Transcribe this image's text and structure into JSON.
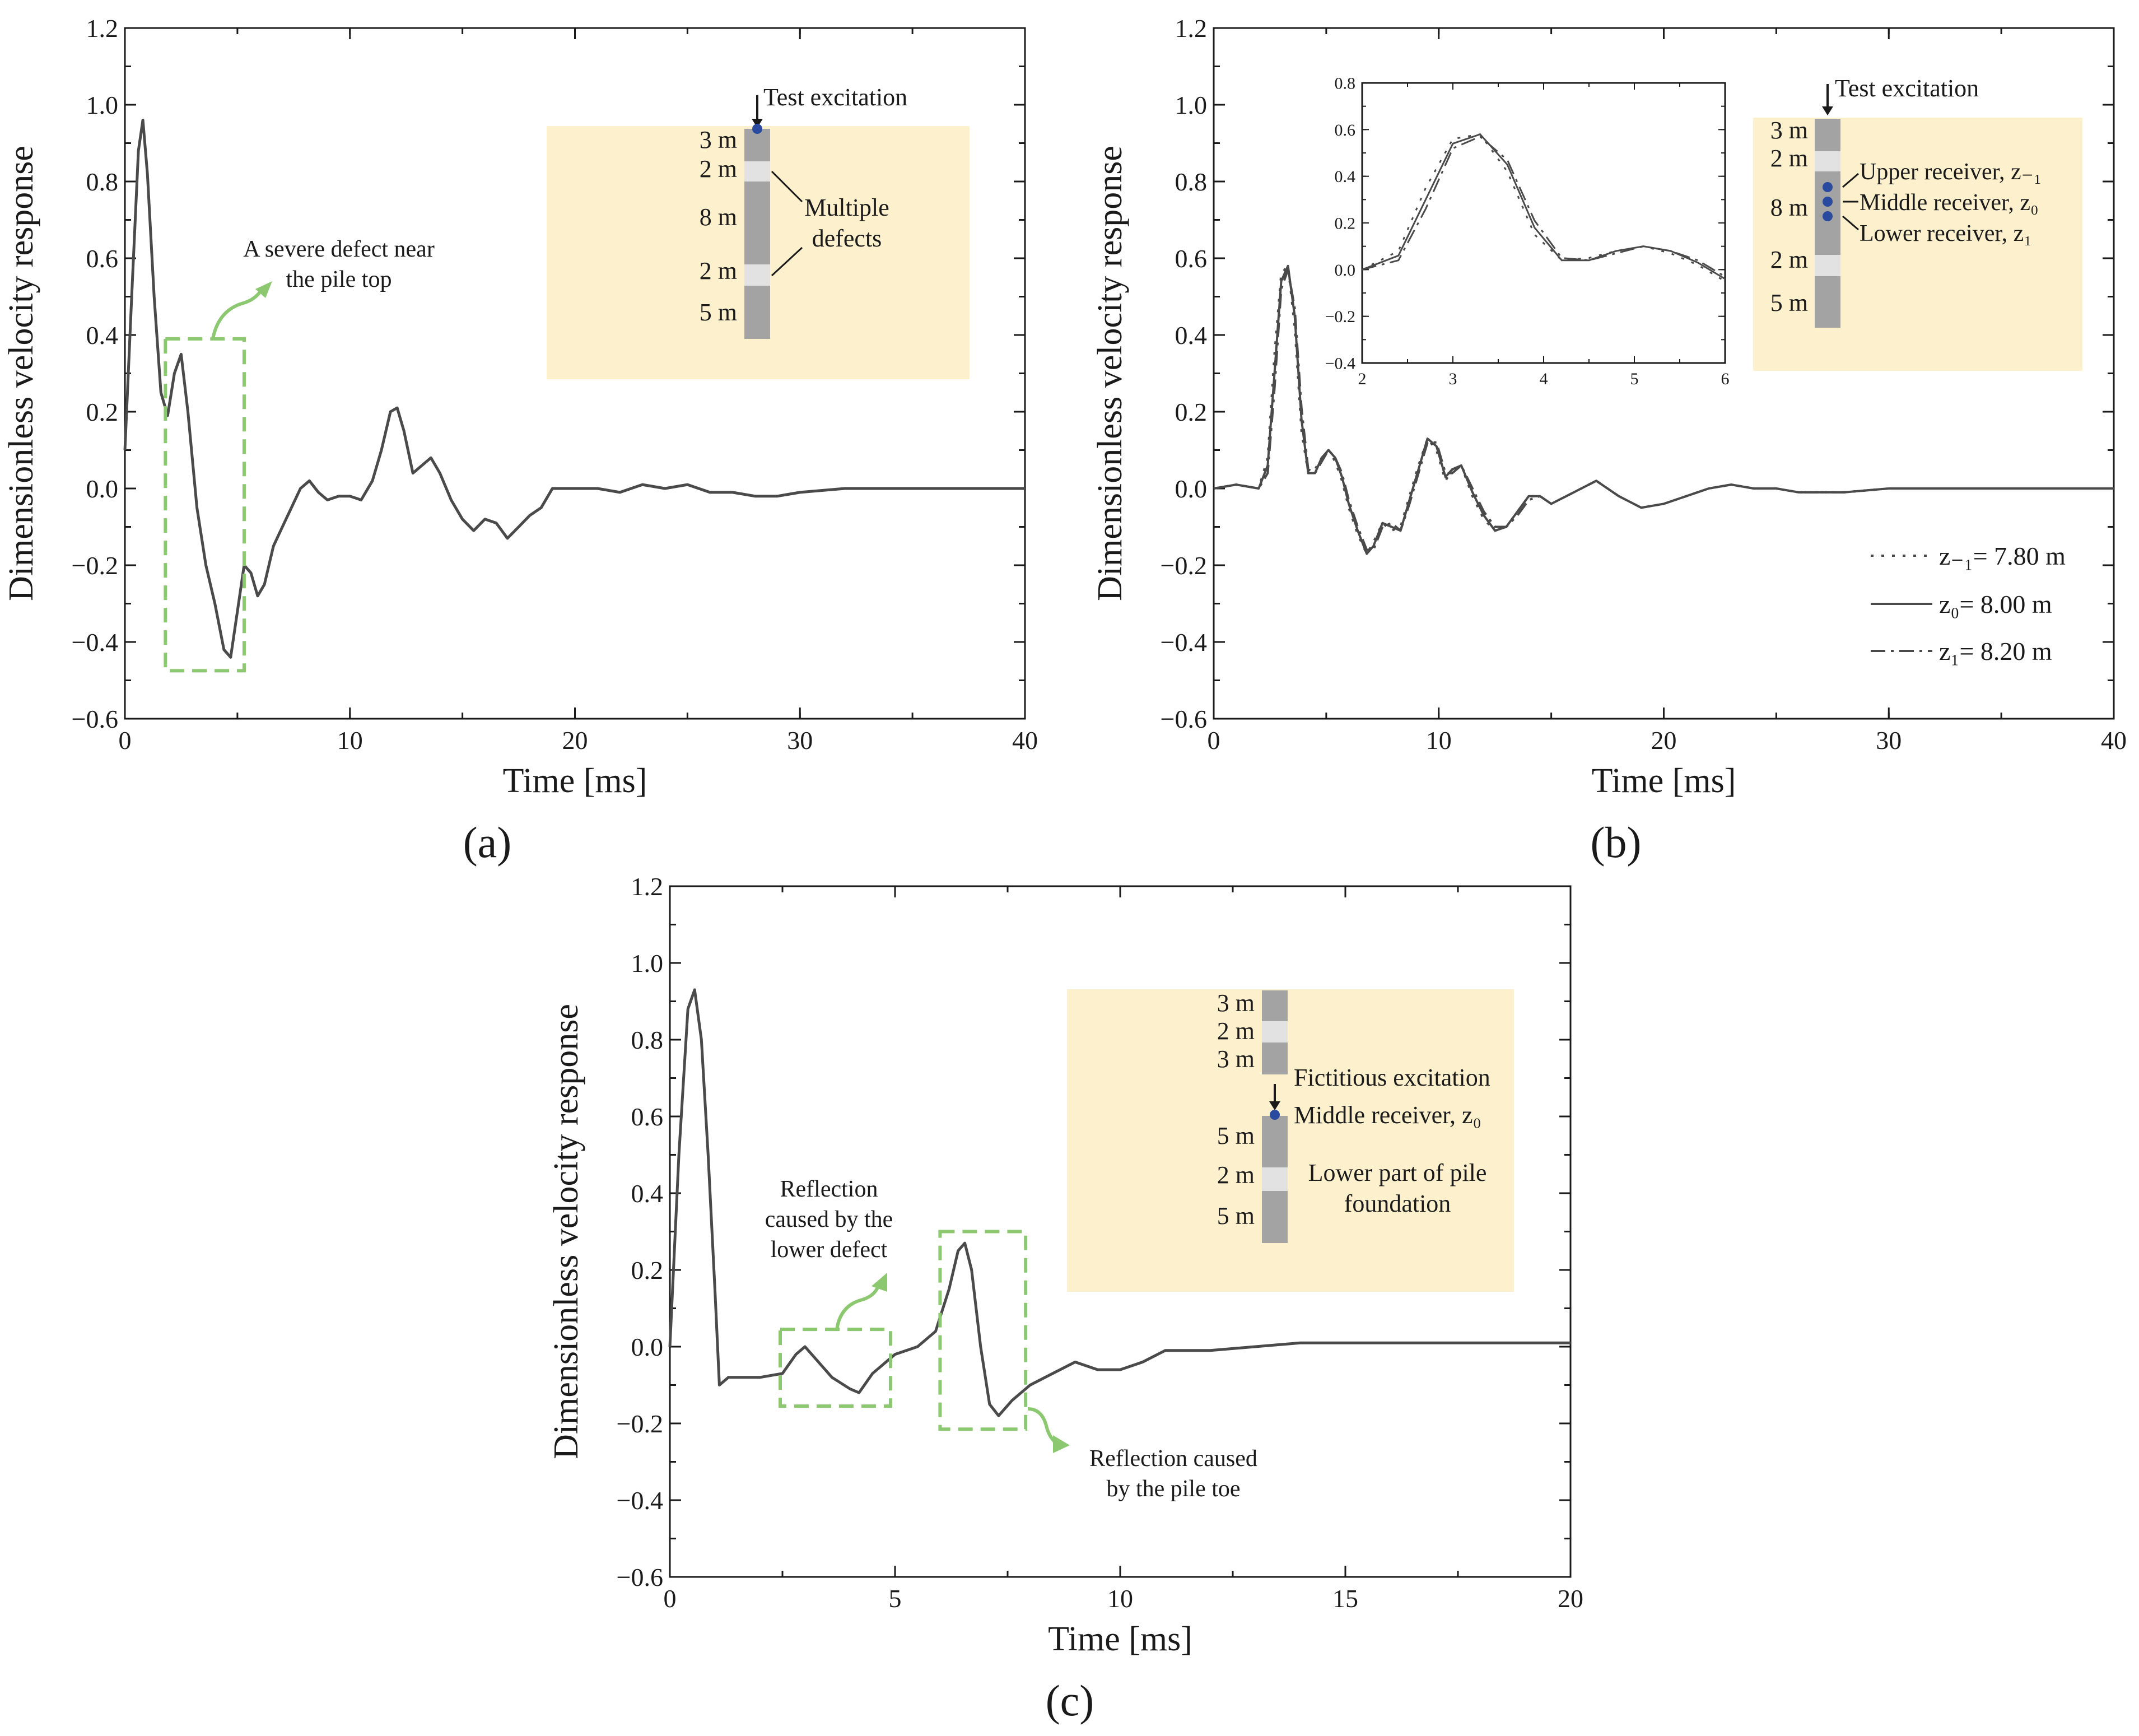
{
  "panel_a": {
    "label": "(a)",
    "annotation": [
      "A severe defect near",
      "the pile top"
    ],
    "inset": {
      "excitation": "Test excitation",
      "defect_note": [
        "Multiple",
        "defects"
      ],
      "segments": [
        "3 m",
        "2 m",
        "8 m",
        "2 m",
        "5 m"
      ]
    }
  },
  "panel_b": {
    "label": "(b)",
    "inset": {
      "excitation": "Test excitation",
      "segments": [
        "3 m",
        "2 m",
        "8 m",
        "2 m",
        "5 m"
      ],
      "receivers": [
        "Upper receiver, z₋₁",
        "Middle receiver, z₀",
        "Lower receiver, z₁"
      ]
    },
    "zoom": {
      "xlim": [
        2,
        6
      ],
      "ylim": [
        -0.4,
        0.8
      ],
      "xticks": [
        2,
        3,
        4,
        5,
        6
      ],
      "yticks": [
        -0.4,
        -0.2,
        0.0,
        0.2,
        0.4,
        0.6,
        0.8
      ]
    }
  },
  "panel_c": {
    "label": "(c)",
    "annotation_defect": [
      "Reflection",
      "caused by the",
      "lower defect"
    ],
    "annotation_toe": [
      "Reflection caused",
      "by the pile toe"
    ],
    "inset": {
      "segments_top": [
        "3 m",
        "2 m",
        "3 m"
      ],
      "segments_bottom": [
        "5 m",
        "2 m",
        "5 m"
      ],
      "excitation": "Fictitious excitation",
      "receiver": "Middle receiver, z₀",
      "part_note": [
        "Lower part of pile",
        "foundation"
      ]
    }
  },
  "colors": {
    "curve": "#4a4a4a",
    "highlight": "#8cc870",
    "inset_bg": "#fdf0cd",
    "pile": "#a3a3a3",
    "pile_defect": "#e2e2e2",
    "receiver_dot": "#2a4aa0"
  },
  "chart_data": [
    {
      "type": "line",
      "title": "",
      "xlabel": "Time [ms]",
      "ylabel": "Dimensionless velocity response",
      "xlim": [
        0,
        40
      ],
      "ylim": [
        -0.6,
        1.2
      ],
      "xticks": [
        0,
        10,
        20,
        30,
        40
      ],
      "yticks": [
        -0.6,
        -0.4,
        -0.2,
        0.0,
        0.2,
        0.4,
        0.6,
        0.8,
        1.0,
        1.2
      ],
      "series": [
        {
          "name": "Velocity response",
          "style": "solid",
          "x": [
            0,
            0.3,
            0.6,
            0.8,
            1.0,
            1.3,
            1.6,
            1.9,
            2.2,
            2.5,
            2.8,
            3.2,
            3.6,
            4.0,
            4.4,
            4.7,
            5.0,
            5.3,
            5.6,
            5.9,
            6.2,
            6.6,
            7.0,
            7.4,
            7.8,
            8.2,
            8.6,
            9.0,
            9.5,
            10.0,
            10.5,
            11.0,
            11.4,
            11.8,
            12.1,
            12.4,
            12.8,
            13.2,
            13.6,
            14.0,
            14.5,
            15.0,
            15.5,
            16.0,
            16.5,
            17.0,
            17.5,
            18.0,
            18.5,
            19.0,
            19.5,
            20.0,
            21.0,
            22.0,
            23.0,
            24.0,
            25.0,
            26.0,
            27.0,
            28.0,
            29.0,
            30.0,
            32.0,
            34.0,
            36.0,
            38.0,
            40.0
          ],
          "y": [
            0.1,
            0.5,
            0.88,
            0.96,
            0.82,
            0.5,
            0.25,
            0.19,
            0.3,
            0.35,
            0.2,
            -0.05,
            -0.2,
            -0.3,
            -0.42,
            -0.44,
            -0.32,
            -0.2,
            -0.22,
            -0.28,
            -0.25,
            -0.15,
            -0.1,
            -0.05,
            0.0,
            0.02,
            -0.01,
            -0.03,
            -0.02,
            -0.02,
            -0.03,
            0.02,
            0.1,
            0.2,
            0.21,
            0.15,
            0.04,
            0.06,
            0.08,
            0.04,
            -0.03,
            -0.08,
            -0.11,
            -0.08,
            -0.09,
            -0.13,
            -0.1,
            -0.07,
            -0.05,
            0.0,
            0.0,
            0.0,
            0.0,
            -0.01,
            0.01,
            0.0,
            0.01,
            -0.01,
            -0.01,
            -0.02,
            -0.02,
            -0.01,
            0.0,
            0.0,
            0.0,
            0.0,
            0.0
          ]
        }
      ]
    },
    {
      "type": "line",
      "title": "",
      "xlabel": "Time [ms]",
      "ylabel": "Dimensionless velocity response",
      "xlim": [
        0,
        40
      ],
      "ylim": [
        -0.6,
        1.2
      ],
      "xticks": [
        0,
        10,
        20,
        30,
        40
      ],
      "yticks": [
        -0.6,
        -0.4,
        -0.2,
        0.0,
        0.2,
        0.4,
        0.6,
        0.8,
        1.0,
        1.2
      ],
      "legend_position": "lower-right",
      "series": [
        {
          "name": "z₋₁= 7.80 m",
          "style": "dotted",
          "x": [
            0,
            1.0,
            2.0,
            2.4,
            2.7,
            3.0,
            3.3,
            3.6,
            3.9,
            4.2,
            4.5,
            4.8,
            5.1,
            5.4,
            5.7,
            6.0,
            6.4,
            6.8,
            7.1,
            7.5,
            7.9,
            8.3,
            8.7,
            9.1,
            9.5,
            9.9,
            10.3,
            10.6,
            11.0,
            11.5,
            12.0,
            12.5,
            13.0,
            13.5,
            14.0,
            14.5,
            15.0,
            16.0,
            17.0,
            18.0,
            19.0,
            20.0,
            21.0,
            22.0,
            23.0,
            24.0,
            25.0,
            26.0,
            28.0,
            30.0,
            32.0,
            35.0,
            40.0
          ],
          "y": [
            0.0,
            0.01,
            0.0,
            0.08,
            0.35,
            0.56,
            0.58,
            0.42,
            0.15,
            0.04,
            0.05,
            0.08,
            0.1,
            0.07,
            0.02,
            -0.05,
            -0.12,
            -0.17,
            -0.14,
            -0.09,
            -0.11,
            -0.1,
            -0.02,
            0.06,
            0.13,
            0.1,
            0.02,
            0.05,
            0.06,
            -0.02,
            -0.08,
            -0.11,
            -0.1,
            -0.06,
            -0.02,
            -0.02,
            -0.04,
            -0.01,
            0.02,
            -0.02,
            -0.05,
            -0.04,
            -0.02,
            0.0,
            0.01,
            0.0,
            0.0,
            -0.01,
            -0.01,
            0.0,
            0.0,
            0.0,
            0.0
          ]
        },
        {
          "name": "z₀= 8.00 m",
          "style": "solid",
          "x": [
            0,
            1.0,
            2.0,
            2.4,
            2.7,
            3.0,
            3.3,
            3.6,
            3.9,
            4.2,
            4.5,
            4.8,
            5.1,
            5.4,
            5.7,
            6.0,
            6.4,
            6.8,
            7.1,
            7.5,
            7.9,
            8.3,
            8.7,
            9.1,
            9.5,
            9.9,
            10.3,
            10.6,
            11.0,
            11.5,
            12.0,
            12.5,
            13.0,
            13.5,
            14.0,
            14.5,
            15.0,
            16.0,
            17.0,
            18.0,
            19.0,
            20.0,
            21.0,
            22.0,
            23.0,
            24.0,
            25.0,
            26.0,
            28.0,
            30.0,
            32.0,
            35.0,
            40.0
          ],
          "y": [
            0.0,
            0.01,
            0.0,
            0.06,
            0.3,
            0.54,
            0.58,
            0.45,
            0.18,
            0.04,
            0.04,
            0.08,
            0.1,
            0.08,
            0.03,
            -0.04,
            -0.11,
            -0.17,
            -0.15,
            -0.09,
            -0.1,
            -0.11,
            -0.03,
            0.05,
            0.13,
            0.11,
            0.03,
            0.05,
            0.06,
            -0.01,
            -0.07,
            -0.11,
            -0.1,
            -0.06,
            -0.02,
            -0.02,
            -0.04,
            -0.01,
            0.02,
            -0.02,
            -0.05,
            -0.04,
            -0.02,
            0.0,
            0.01,
            0.0,
            0.0,
            -0.01,
            -0.01,
            0.0,
            0.0,
            0.0,
            0.0
          ]
        },
        {
          "name": "z₁= 8.20 m",
          "style": "dashdot",
          "x": [
            0,
            1.0,
            2.0,
            2.4,
            2.7,
            3.0,
            3.3,
            3.6,
            3.9,
            4.2,
            4.5,
            4.8,
            5.1,
            5.4,
            5.7,
            6.0,
            6.4,
            6.8,
            7.1,
            7.5,
            7.9,
            8.3,
            8.7,
            9.1,
            9.5,
            9.9,
            10.3,
            10.6,
            11.0,
            11.5,
            12.0,
            12.5,
            13.0,
            13.5,
            14.0,
            14.5,
            15.0,
            16.0,
            17.0,
            18.0,
            19.0,
            20.0,
            21.0,
            22.0,
            23.0,
            24.0,
            25.0,
            26.0,
            28.0,
            30.0,
            32.0,
            35.0,
            40.0
          ],
          "y": [
            0.0,
            0.01,
            0.0,
            0.04,
            0.26,
            0.52,
            0.57,
            0.47,
            0.21,
            0.05,
            0.04,
            0.07,
            0.1,
            0.08,
            0.04,
            -0.03,
            -0.1,
            -0.16,
            -0.16,
            -0.1,
            -0.09,
            -0.11,
            -0.04,
            0.04,
            0.12,
            0.12,
            0.04,
            0.04,
            0.06,
            0.0,
            -0.06,
            -0.1,
            -0.1,
            -0.07,
            -0.03,
            -0.02,
            -0.04,
            -0.01,
            0.02,
            -0.02,
            -0.05,
            -0.04,
            -0.02,
            0.0,
            0.01,
            0.0,
            0.0,
            -0.01,
            -0.01,
            0.0,
            0.0,
            0.0,
            0.0
          ]
        }
      ]
    },
    {
      "type": "line",
      "title": "",
      "xlabel": "Time [ms]",
      "ylabel": "Dimensionless velocity response",
      "xlim": [
        0,
        20
      ],
      "ylim": [
        -0.6,
        1.2
      ],
      "xticks": [
        0,
        5,
        10,
        15,
        20
      ],
      "yticks": [
        -0.6,
        -0.4,
        -0.2,
        0.0,
        0.2,
        0.4,
        0.6,
        0.8,
        1.0,
        1.2
      ],
      "series": [
        {
          "name": "Velocity response",
          "style": "solid",
          "x": [
            0,
            0.2,
            0.4,
            0.55,
            0.7,
            0.85,
            1.0,
            1.1,
            1.3,
            1.6,
            2.0,
            2.5,
            2.8,
            3.0,
            3.3,
            3.6,
            4.0,
            4.2,
            4.5,
            5.0,
            5.5,
            5.9,
            6.2,
            6.4,
            6.55,
            6.7,
            6.9,
            7.1,
            7.3,
            7.6,
            8.0,
            8.5,
            9.0,
            9.5,
            10.0,
            10.5,
            11.0,
            12.0,
            13.0,
            14.0,
            15.0,
            16.0,
            17.0,
            18.0,
            19.0,
            20.0
          ],
          "y": [
            0.0,
            0.5,
            0.88,
            0.93,
            0.8,
            0.5,
            0.15,
            -0.1,
            -0.08,
            -0.08,
            -0.08,
            -0.07,
            -0.02,
            0.0,
            -0.04,
            -0.08,
            -0.11,
            -0.12,
            -0.07,
            -0.02,
            0.0,
            0.04,
            0.15,
            0.25,
            0.27,
            0.2,
            0.0,
            -0.15,
            -0.18,
            -0.14,
            -0.1,
            -0.07,
            -0.04,
            -0.06,
            -0.06,
            -0.04,
            -0.01,
            -0.01,
            0.0,
            0.01,
            0.01,
            0.01,
            0.01,
            0.01,
            0.01,
            0.01
          ]
        }
      ]
    }
  ]
}
